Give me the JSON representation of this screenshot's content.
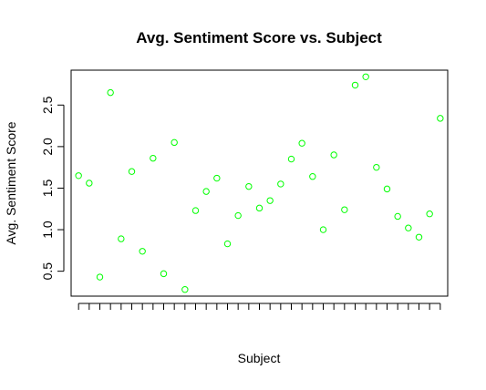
{
  "chart_data": {
    "type": "scatter",
    "title": "Avg. Sentiment Score vs. Subject",
    "xlabel": "Subject",
    "ylabel": "Avg. Sentiment Score",
    "x": [
      1,
      2,
      3,
      4,
      5,
      6,
      7,
      8,
      9,
      10,
      11,
      12,
      13,
      14,
      15,
      16,
      17,
      18,
      19,
      20,
      21,
      22,
      23,
      24,
      25,
      26,
      27,
      28,
      29,
      30,
      31,
      32,
      33,
      34,
      35
    ],
    "series": [
      {
        "values": [
          1.65,
          1.56,
          0.43,
          2.65,
          0.89,
          1.7,
          0.74,
          1.86,
          0.47,
          2.05,
          0.28,
          1.23,
          1.46,
          1.62,
          0.83,
          1.17,
          1.52,
          1.26,
          1.35,
          1.55,
          1.85,
          2.04,
          1.64,
          1.0,
          1.9,
          1.24,
          2.74,
          2.84,
          1.75,
          1.49,
          1.16,
          1.02,
          0.91,
          1.19,
          2.34
        ],
        "color": "#00ff00",
        "marker": "open-circle"
      }
    ],
    "xlim": [
      0.3,
      35.7
    ],
    "ylim": [
      0.2,
      2.92
    ],
    "yticks": [
      "0.5",
      "1.0",
      "1.5",
      "2.0",
      "2.5"
    ],
    "xtick_labels_shown": false,
    "grid": false,
    "legend": "none"
  }
}
